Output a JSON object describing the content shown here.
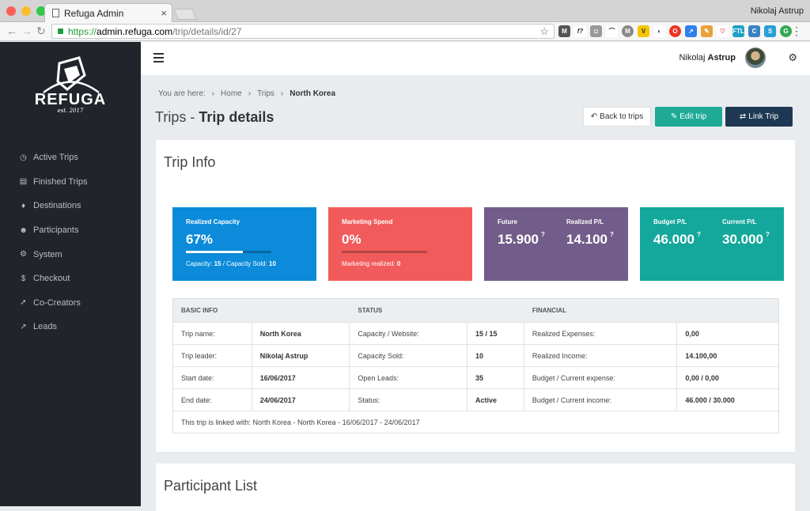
{
  "browser": {
    "tab_title": "Refuga Admin",
    "user": "Nikolaj Astrup",
    "url_scheme": "https://",
    "url_domain": "admin.refuga.com",
    "url_path": "/trip/details/id/27"
  },
  "sidebar": {
    "logo_text": "REFUGA",
    "logo_est": "est. 2017",
    "items": [
      {
        "label": "Active Trips",
        "icon": "clock-icon"
      },
      {
        "label": "Finished Trips",
        "icon": "list-icon"
      },
      {
        "label": "Destinations",
        "icon": "map-pin-icon"
      },
      {
        "label": "Participants",
        "icon": "users-icon"
      },
      {
        "label": "System",
        "icon": "cogs-icon"
      },
      {
        "label": "Checkout",
        "icon": "dollar-icon"
      },
      {
        "label": "Co-Creators",
        "icon": "rocket-icon"
      },
      {
        "label": "Leads",
        "icon": "chart-icon"
      }
    ]
  },
  "topbar": {
    "user_first": "Nikolaj",
    "user_last": "Astrup"
  },
  "breadcrumb": {
    "prefix": "You are here:",
    "items": [
      "Home",
      "Trips",
      "North Korea"
    ]
  },
  "page": {
    "title_prefix": "Trips -",
    "title_main": "Trip details",
    "back_label": "Back to trips",
    "edit_label": "Edit trip",
    "link_label": "Link Trip"
  },
  "trip_info": {
    "title": "Trip Info",
    "stats": {
      "capacity": {
        "label": "Realized Capacity",
        "value": "67%",
        "progress": 0.67,
        "sub_label_a": "Capacity:",
        "sub_value_a": "15",
        "sub_label_b": "/ Capacity Sold:",
        "sub_value_b": "10"
      },
      "marketing": {
        "label": "Marketing Spend",
        "value": "0%",
        "progress": 0,
        "sub_label": "Marketing realized:",
        "sub_value": "0"
      },
      "future": {
        "label": "Future",
        "value": "15.900",
        "label2": "Realized P/L",
        "value2": "14.100"
      },
      "budget": {
        "label": "Budget P/L",
        "value": "46.000",
        "label2": "Current P/L",
        "value2": "30.000"
      }
    },
    "table": {
      "headers": [
        "BASIC INFO",
        "STATUS",
        "FINANCIAL"
      ],
      "rows": [
        [
          "Trip name:",
          "North Korea",
          "Capacity / Website:",
          "15 / 15",
          "Realized Expenses:",
          "0,00"
        ],
        [
          "Trip leader:",
          "Nikolaj Astrup",
          "Capacity Sold:",
          "10",
          "Realized Income:",
          "14.100,00"
        ],
        [
          "Start date:",
          "16/06/2017",
          "Open Leads:",
          "35",
          "Budget / Current expense:",
          "0,00 / 0,00"
        ],
        [
          "End date:",
          "24/06/2017",
          "Status:",
          "Active",
          "Budget / Current income:",
          "46.000 / 30.000"
        ]
      ],
      "footer": "This trip is linked with: North Korea - North Korea - 16/06/2017 - 24/06/2017"
    }
  },
  "participant_list": {
    "title": "Participant List"
  },
  "colors": {
    "sidebar": "#21252b",
    "capacity": "#0b8bd9",
    "marketing": "#f25b5b",
    "future": "#725d8a",
    "budget": "#14a79b",
    "edit": "#1faa96",
    "link": "#1e3853"
  }
}
